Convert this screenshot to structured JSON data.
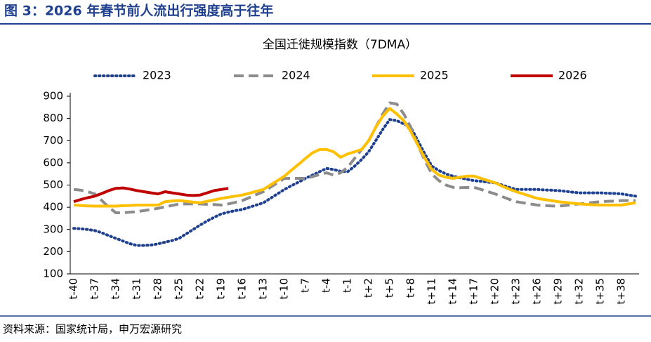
{
  "header": {
    "title": "图 3：2026 年春节前人流出行强度高于往年"
  },
  "chart_data": {
    "type": "line",
    "title": "全国迁徙规模指数（7DMA）",
    "categories": [
      "t-40",
      null,
      null,
      "t-37",
      null,
      null,
      "t-34",
      null,
      null,
      "t-31",
      null,
      null,
      "t-28",
      null,
      null,
      "t-25",
      null,
      null,
      "t-22",
      null,
      null,
      "t-19",
      null,
      null,
      "t-16",
      null,
      null,
      "t-13",
      null,
      null,
      "t-10",
      null,
      null,
      "t-7",
      null,
      null,
      "t-4",
      null,
      null,
      "t-1",
      null,
      null,
      "t+2",
      null,
      null,
      "t+5",
      null,
      null,
      "t+8",
      null,
      null,
      "t+11",
      null,
      null,
      "t+14",
      null,
      null,
      "t+17",
      null,
      null,
      "t+20",
      null,
      null,
      "t+23",
      null,
      null,
      "t+26",
      null,
      null,
      "t+29",
      null,
      null,
      "t+32",
      null,
      null,
      "t+35",
      null,
      null,
      "t+38",
      null,
      null
    ],
    "series": [
      {
        "name": "2023",
        "color": "#1f3f8f",
        "style": "dotted",
        "values": [
          305,
          303,
          300,
          295,
          285,
          272,
          260,
          248,
          236,
          228,
          228,
          230,
          235,
          243,
          250,
          260,
          280,
          300,
          320,
          338,
          355,
          370,
          378,
          385,
          390,
          400,
          410,
          420,
          440,
          460,
          480,
          497,
          513,
          530,
          545,
          560,
          575,
          570,
          562,
          560,
          585,
          615,
          650,
          700,
          750,
          795,
          790,
          775,
          760,
          700,
          640,
          585,
          565,
          550,
          540,
          533,
          526,
          520,
          517,
          513,
          510,
          500,
          490,
          480,
          480,
          480,
          480,
          478,
          477,
          475,
          472,
          468,
          465,
          465,
          465,
          465,
          463,
          462,
          460,
          455,
          450
        ]
      },
      {
        "name": "2024",
        "color": "#8c8c8c",
        "style": "dashed",
        "values": [
          480,
          477,
          470,
          460,
          430,
          400,
          375,
          375,
          378,
          380,
          385,
          390,
          395,
          402,
          408,
          415,
          415,
          415,
          415,
          413,
          412,
          410,
          415,
          422,
          430,
          443,
          457,
          470,
          490,
          510,
          530,
          530,
          530,
          530,
          538,
          547,
          555,
          545,
          555,
          580,
          620,
          660,
          700,
          760,
          820,
          870,
          865,
          820,
          760,
          680,
          610,
          550,
          520,
          500,
          490,
          488,
          489,
          490,
          480,
          470,
          460,
          448,
          436,
          425,
          420,
          415,
          410,
          408,
          406,
          405,
          408,
          412,
          415,
          418,
          422,
          425,
          427,
          428,
          430,
          430,
          430
        ]
      },
      {
        "name": "2025",
        "color": "#ffc000",
        "style": "solid",
        "values": [
          410,
          408,
          406,
          405,
          405,
          405,
          405,
          407,
          408,
          410,
          410,
          410,
          410,
          425,
          428,
          430,
          427,
          423,
          420,
          427,
          433,
          440,
          445,
          450,
          455,
          463,
          472,
          480,
          500,
          520,
          540,
          567,
          593,
          620,
          645,
          660,
          660,
          650,
          625,
          640,
          650,
          660,
          700,
          760,
          810,
          845,
          820,
          790,
          740,
          680,
          620,
          570,
          545,
          535,
          530,
          535,
          540,
          540,
          530,
          520,
          510,
          495,
          482,
          470,
          460,
          450,
          440,
          435,
          430,
          425,
          422,
          418,
          415,
          413,
          411,
          410,
          410,
          410,
          410,
          415,
          420
        ]
      },
      {
        "name": "2026",
        "color": "#c00000",
        "style": "solid",
        "values": [
          425,
          435,
          443,
          450,
          462,
          475,
          485,
          487,
          482,
          475,
          470,
          465,
          460,
          470,
          465,
          460,
          455,
          453,
          455,
          465,
          475,
          480,
          485,
          null,
          null,
          null,
          null,
          null,
          null,
          null,
          null,
          null,
          null,
          null,
          null,
          null,
          null,
          null,
          null,
          null,
          null,
          null,
          null,
          null,
          null,
          null,
          null,
          null,
          null,
          null,
          null,
          null,
          null,
          null,
          null,
          null,
          null,
          null,
          null,
          null,
          null,
          null,
          null,
          null,
          null,
          null,
          null,
          null,
          null,
          null,
          null,
          null,
          null,
          null,
          null,
          null,
          null,
          null,
          null,
          null,
          null
        ]
      }
    ],
    "ylim": [
      100,
      900
    ],
    "yticks": [
      100,
      200,
      300,
      400,
      500,
      600,
      700,
      800,
      900
    ],
    "grid": false
  },
  "footer": {
    "source": "资料来源：国家统计局，申万宏源研究"
  }
}
